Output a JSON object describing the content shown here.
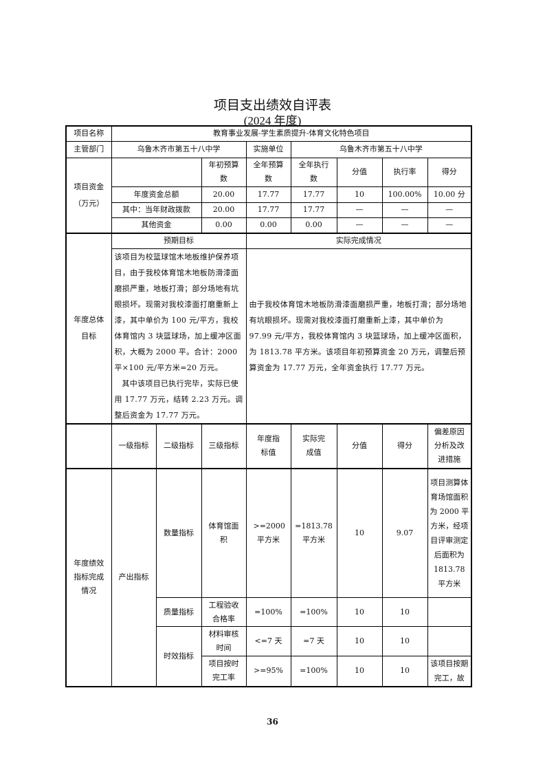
{
  "title": "项目支出绩效自评表",
  "subtitle": "(2024 年度)",
  "project": {
    "label": "项目名称",
    "value": "教育事业发展-学生素质提升-体育文化特色项目"
  },
  "department": {
    "label": "主管部门",
    "value": "乌鲁木齐市第五十八中学",
    "impl_label": "实施单位",
    "impl_value": "乌鲁木齐市第五十八中学"
  },
  "funds": {
    "label": "项目资金（万元）",
    "headers": [
      "",
      "年初预算数",
      "全年预算数",
      "全年执行数",
      "分值",
      "执行率",
      "得分"
    ],
    "rows": [
      [
        "年度资金总额",
        "20.00",
        "17.77",
        "17.77",
        "10",
        "100.00%",
        "10.00 分"
      ],
      [
        "其中：当年财政拨款",
        "20.00",
        "17.77",
        "17.77",
        "—",
        "—",
        "—"
      ],
      [
        "其他资金",
        "0.00",
        "0.00",
        "0.00",
        "—",
        "—",
        "—"
      ]
    ]
  },
  "goals": {
    "label": "年度总体目标",
    "expected_header": "预期目标",
    "actual_header": "实际完成情况",
    "expected_p1": "该项目为校篮球馆木地板维护保养项目，由于我校体育馆木地板防滑漆面磨损严重，地板打滑；部分场地有坑眼损坏。现需对我校漆面打磨重新上漆，其中单价为 100 元/平方，我校体育馆内 3 块篮球场，加上缓冲区面积，大概为 2000 平。合计：2000 平×100 元/平方米=20 万元。",
    "expected_p2": "其中该项目已执行完毕，实际已使用 17.77 万元，结转 2.23 万元。调整后资金为 17.77 万元。",
    "actual": "由于我校体育馆木地板防滑漆面磨损严重，地板打滑；部分场地有坑眼损坏。现需对我校漆面打磨重新上漆，其中单价为 97.99 元/平方，我校体育馆内 3 块篮球场，加上缓冲区面积，为 1813.78 平方米。该项目年初预算资金 20 万元，调整后预算资金为 17.77 万元，全年资金执行 17.77 万元。"
  },
  "indicators": {
    "label": "年度绩效指标完成情况",
    "headers": [
      "一级指标",
      "二级指标",
      "三级指标",
      "年度指标值",
      "实际完成值",
      "分值",
      "得分",
      "偏差原因分析及改进措施"
    ],
    "level1": "产出指标",
    "rows": [
      {
        "level2": "数量指标",
        "level3": "体育馆面积",
        "target": ">=2000 平方米",
        "actual": "=1813.78 平方米",
        "weight": "10",
        "score": "9.07",
        "reason": "项目测算体育场馆面积为 2000 平方米，经项目评审测定后面积为 1813.78 平方米"
      },
      {
        "level2": "质量指标",
        "level3": "工程验收合格率",
        "target": "=100%",
        "actual": "=100%",
        "weight": "10",
        "score": "10",
        "reason": ""
      },
      {
        "level2": "时效指标",
        "level3": "材料审核时间",
        "target": "<=7 天",
        "actual": "=7 天",
        "weight": "10",
        "score": "10",
        "reason": ""
      },
      {
        "level2": "",
        "level3": "项目按时完工率",
        "target": ">=95%",
        "actual": "=100%",
        "weight": "10",
        "score": "10",
        "reason": "该项目按期完工，故"
      }
    ]
  },
  "page_number": "36"
}
